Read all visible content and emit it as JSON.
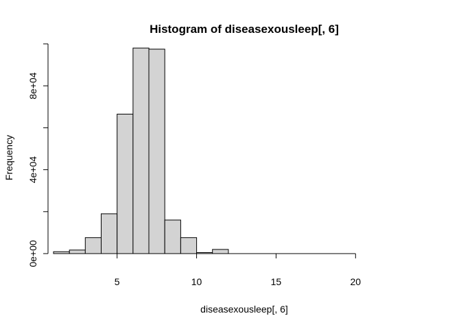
{
  "chart_data": {
    "type": "bar",
    "title": "Histogram of diseasexousleep[, 6]",
    "xlabel": "diseasexousleep[, 6]",
    "ylabel": "Frequency",
    "bins": [
      {
        "from": 1,
        "to": 2,
        "count": 900
      },
      {
        "from": 2,
        "to": 3,
        "count": 1700
      },
      {
        "from": 3,
        "to": 4,
        "count": 7600
      },
      {
        "from": 4,
        "to": 5,
        "count": 19000
      },
      {
        "from": 5,
        "to": 6,
        "count": 66500
      },
      {
        "from": 6,
        "to": 7,
        "count": 98000
      },
      {
        "from": 7,
        "to": 8,
        "count": 97500
      },
      {
        "from": 8,
        "to": 9,
        "count": 16000
      },
      {
        "from": 9,
        "to": 10,
        "count": 7600
      },
      {
        "from": 10,
        "to": 11,
        "count": 500
      },
      {
        "from": 11,
        "to": 12,
        "count": 2000
      },
      {
        "from": 12,
        "to": 13,
        "count": 0
      },
      {
        "from": 13,
        "to": 14,
        "count": 0
      },
      {
        "from": 14,
        "to": 15,
        "count": 0
      },
      {
        "from": 15,
        "to": 16,
        "count": 0
      },
      {
        "from": 16,
        "to": 17,
        "count": 0
      },
      {
        "from": 17,
        "to": 18,
        "count": 0
      },
      {
        "from": 18,
        "to": 19,
        "count": 0
      },
      {
        "from": 19,
        "to": 20,
        "count": 0
      },
      {
        "from": 20,
        "to": 21,
        "count": 0
      },
      {
        "from": 21,
        "to": 22,
        "count": 0
      },
      {
        "from": 22,
        "to": 23,
        "count": 0
      },
      {
        "from": 23,
        "to": 24,
        "count": 0
      }
    ],
    "xlim": [
      1,
      24
    ],
    "ylim": [
      0,
      100000
    ],
    "x_ticks": [
      5,
      10,
      15,
      20
    ],
    "x_tick_labels": [
      "5",
      "10",
      "15",
      "20"
    ],
    "y_ticks": [
      0,
      40000,
      80000
    ],
    "y_tick_labels": [
      "0e+00",
      "4e+04",
      "8e+04"
    ],
    "y_minor_ticks": [
      20000,
      60000,
      100000
    ],
    "bar_fill": "#d3d3d3",
    "bar_stroke": "#000000",
    "grid": false
  }
}
